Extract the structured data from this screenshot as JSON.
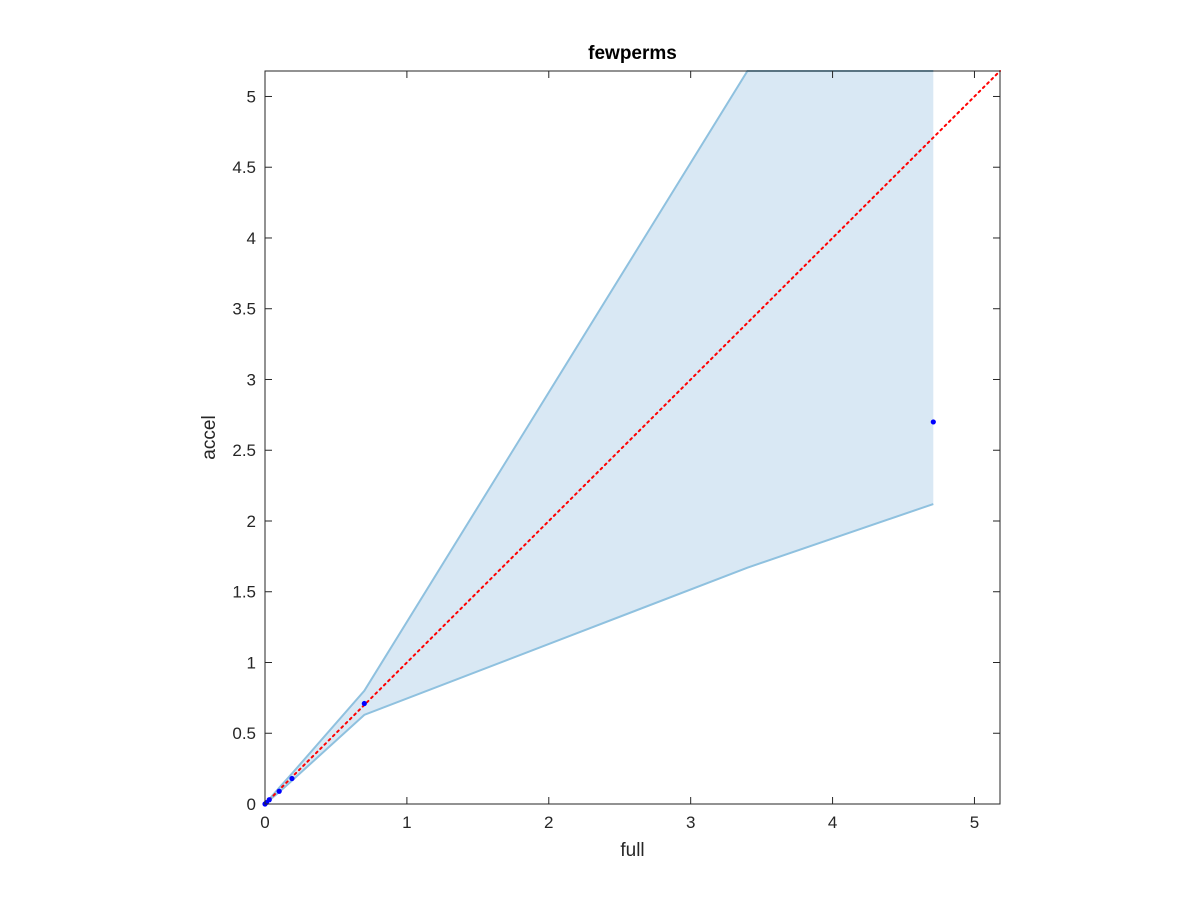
{
  "chart_data": {
    "type": "scatter",
    "title": "fewperms",
    "xlabel": "full",
    "ylabel": "accel",
    "xlim": [
      0,
      5.18
    ],
    "ylim": [
      0,
      5.18
    ],
    "xticks": [
      0,
      1,
      2,
      3,
      4,
      5
    ],
    "xtick_labels": [
      "0",
      "1",
      "2",
      "3",
      "4",
      "5"
    ],
    "yticks": [
      0,
      0.5,
      1,
      1.5,
      2,
      2.5,
      3,
      3.5,
      4,
      4.5,
      5
    ],
    "ytick_labels": [
      "0",
      "0.5",
      "1",
      "1.5",
      "2",
      "2.5",
      "3",
      "3.5",
      "4",
      "4.5",
      "5"
    ],
    "grid": false,
    "band": {
      "x": [
        0,
        0.01,
        0.03,
        0.1,
        0.19,
        0.7,
        3.4,
        4.71
      ],
      "upper": [
        0,
        0.011,
        0.034,
        0.115,
        0.215,
        0.8,
        5.18,
        5.18
      ],
      "lower": [
        0,
        0.009,
        0.026,
        0.085,
        0.165,
        0.63,
        1.67,
        2.12
      ],
      "band_end_x": 4.71,
      "fill_color": "#d9e8f4",
      "edge_color": "#8fc1df"
    },
    "points": {
      "x": [
        0,
        0.01,
        0.03,
        0.1,
        0.19,
        0.7,
        4.71
      ],
      "y": [
        0,
        0.01,
        0.03,
        0.09,
        0.18,
        0.71,
        2.7
      ],
      "color": "#0000ff"
    },
    "reference_line": {
      "x": [
        0,
        5.18
      ],
      "y": [
        0,
        5.18
      ],
      "color": "#ff0000",
      "style": "dotted"
    }
  }
}
